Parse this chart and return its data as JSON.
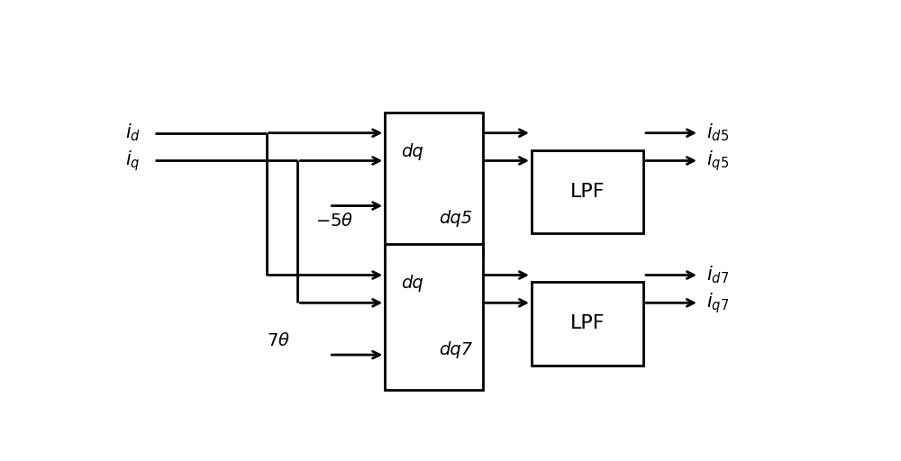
{
  "bg_color": "#ffffff",
  "lc": "#000000",
  "lw": 2.0,
  "figsize": [
    10.0,
    5.12
  ],
  "dpi": 100,
  "input_id": "$i_d$",
  "input_iq": "$i_q$",
  "theta5": "$-5\\theta$",
  "theta7": "$7\\theta$",
  "out_id5": "$i_{d5}$",
  "out_iq5": "$i_{q5}$",
  "out_id7": "$i_{d7}$",
  "out_iq7": "$i_{q7}$",
  "dq_label": "dq",
  "dq5_label": "dq5",
  "dq7_label": "dq7",
  "lpf_label": "LPF",
  "font_input": 15,
  "font_block": 14,
  "font_out": 15,
  "font_theta": 14,
  "arrow_ms": 14
}
